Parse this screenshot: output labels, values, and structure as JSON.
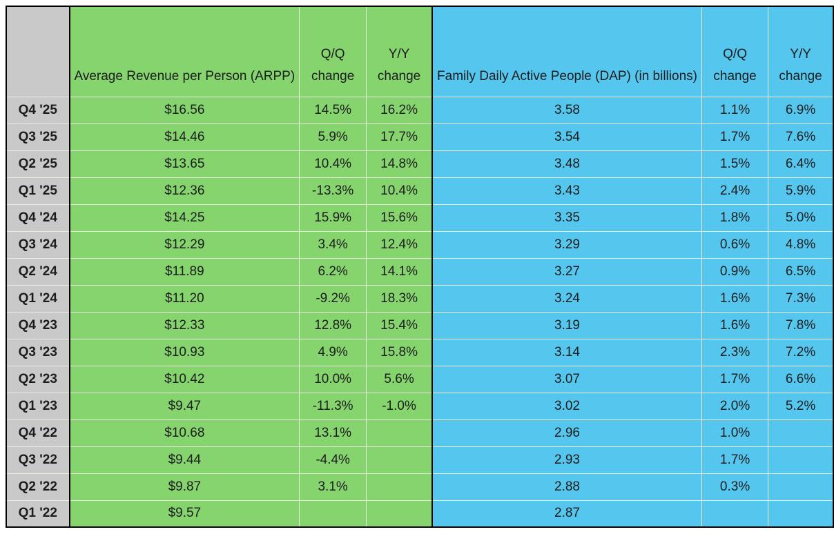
{
  "colors": {
    "green_fill": "#85d46e",
    "blue_fill": "#55c7ef",
    "gray_fill": "#c9c9c9",
    "grid_line": "#ededdf",
    "outer_border": "#000000",
    "text": "#1c1c1c"
  },
  "header": {
    "corner": "",
    "arpp_title": "Average Revenue per Person (ARPP)",
    "arpp_qq": {
      "line1": "Q/Q",
      "line2": "change"
    },
    "arpp_yy": {
      "line1": "Y/Y",
      "line2": "change"
    },
    "dap_title": "Family Daily Active People (DAP) (in billions)",
    "dap_qq": {
      "line1": "Q/Q",
      "line2": "change"
    },
    "dap_yy": {
      "line1": "Y/Y",
      "line2": "change"
    }
  },
  "rows": [
    {
      "quarter": "Q4 '25",
      "arpp": "$16.56",
      "arpp_qq": "14.5%",
      "arpp_yy": "16.2%",
      "dap": "3.58",
      "dap_qq": "1.1%",
      "dap_yy": "6.9%"
    },
    {
      "quarter": "Q3 '25",
      "arpp": "$14.46",
      "arpp_qq": "5.9%",
      "arpp_yy": "17.7%",
      "dap": "3.54",
      "dap_qq": "1.7%",
      "dap_yy": "7.6%"
    },
    {
      "quarter": "Q2 '25",
      "arpp": "$13.65",
      "arpp_qq": "10.4%",
      "arpp_yy": "14.8%",
      "dap": "3.48",
      "dap_qq": "1.5%",
      "dap_yy": "6.4%"
    },
    {
      "quarter": "Q1 '25",
      "arpp": "$12.36",
      "arpp_qq": "-13.3%",
      "arpp_yy": "10.4%",
      "dap": "3.43",
      "dap_qq": "2.4%",
      "dap_yy": "5.9%"
    },
    {
      "quarter": "Q4 '24",
      "arpp": "$14.25",
      "arpp_qq": "15.9%",
      "arpp_yy": "15.6%",
      "dap": "3.35",
      "dap_qq": "1.8%",
      "dap_yy": "5.0%"
    },
    {
      "quarter": "Q3 '24",
      "arpp": "$12.29",
      "arpp_qq": "3.4%",
      "arpp_yy": "12.4%",
      "dap": "3.29",
      "dap_qq": "0.6%",
      "dap_yy": "4.8%"
    },
    {
      "quarter": "Q2 '24",
      "arpp": "$11.89",
      "arpp_qq": "6.2%",
      "arpp_yy": "14.1%",
      "dap": "3.27",
      "dap_qq": "0.9%",
      "dap_yy": "6.5%"
    },
    {
      "quarter": "Q1 '24",
      "arpp": "$11.20",
      "arpp_qq": "-9.2%",
      "arpp_yy": "18.3%",
      "dap": "3.24",
      "dap_qq": "1.6%",
      "dap_yy": "7.3%"
    },
    {
      "quarter": "Q4 '23",
      "arpp": "$12.33",
      "arpp_qq": "12.8%",
      "arpp_yy": "15.4%",
      "dap": "3.19",
      "dap_qq": "1.6%",
      "dap_yy": "7.8%"
    },
    {
      "quarter": "Q3 '23",
      "arpp": "$10.93",
      "arpp_qq": "4.9%",
      "arpp_yy": "15.8%",
      "dap": "3.14",
      "dap_qq": "2.3%",
      "dap_yy": "7.2%"
    },
    {
      "quarter": "Q2 '23",
      "arpp": "$10.42",
      "arpp_qq": "10.0%",
      "arpp_yy": "5.6%",
      "dap": "3.07",
      "dap_qq": "1.7%",
      "dap_yy": "6.6%"
    },
    {
      "quarter": "Q1 '23",
      "arpp": "$9.47",
      "arpp_qq": "-11.3%",
      "arpp_yy": "-1.0%",
      "dap": "3.02",
      "dap_qq": "2.0%",
      "dap_yy": "5.2%"
    },
    {
      "quarter": "Q4 '22",
      "arpp": "$10.68",
      "arpp_qq": "13.1%",
      "arpp_yy": "",
      "dap": "2.96",
      "dap_qq": "1.0%",
      "dap_yy": ""
    },
    {
      "quarter": "Q3 '22",
      "arpp": "$9.44",
      "arpp_qq": "-4.4%",
      "arpp_yy": "",
      "dap": "2.93",
      "dap_qq": "1.7%",
      "dap_yy": ""
    },
    {
      "quarter": "Q2 '22",
      "arpp": "$9.87",
      "arpp_qq": "3.1%",
      "arpp_yy": "",
      "dap": "2.88",
      "dap_qq": "0.3%",
      "dap_yy": ""
    },
    {
      "quarter": "Q1 '22",
      "arpp": "$9.57",
      "arpp_qq": "",
      "arpp_yy": "",
      "dap": "2.87",
      "dap_qq": "",
      "dap_yy": ""
    }
  ]
}
